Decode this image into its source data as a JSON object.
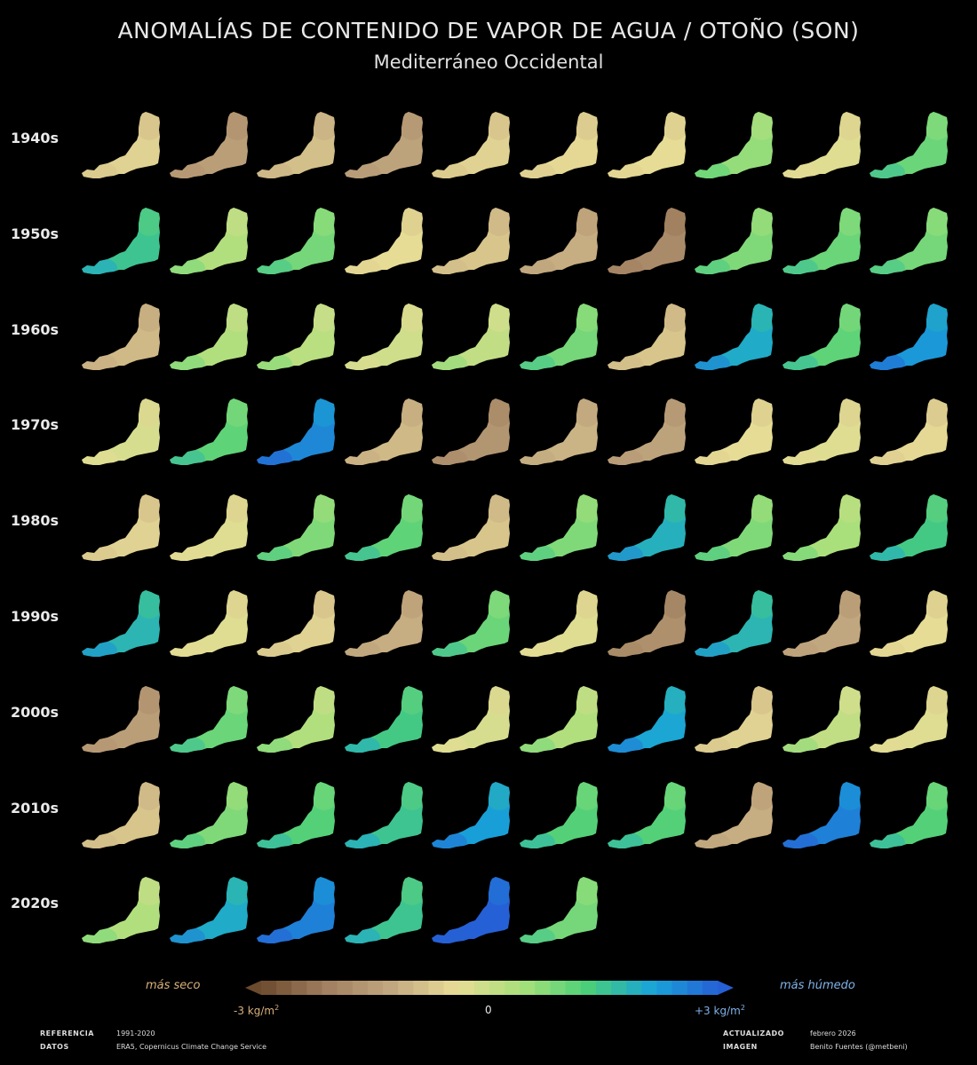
{
  "header": {
    "title": "ANOMALÍAS DE CONTENIDO DE VAPOR DE AGUA / OTOÑO (SON)",
    "subtitle": "Mediterráneo Occidental"
  },
  "chart_data": {
    "type": "heatmap",
    "title": "ANOMALÍAS DE CONTENIDO DE VAPOR DE AGUA / OTOÑO (SON)",
    "subtitle": "Mediterráneo Occidental",
    "row_labels": [
      "1940s",
      "1950s",
      "1960s",
      "1970s",
      "1980s",
      "1990s",
      "2000s",
      "2010s",
      "2020s"
    ],
    "columns_per_row": 10,
    "value_range": [
      -3,
      3
    ],
    "units": "kg/m2",
    "values": [
      [
        -0.6,
        -1.5,
        -0.9,
        -1.4,
        -0.6,
        -0.5,
        -0.4,
        0.6,
        -0.3,
        1.0
      ],
      [
        1.5,
        0.3,
        0.9,
        -0.4,
        -0.8,
        -1.2,
        -1.9,
        0.8,
        1.0,
        0.9
      ],
      [
        -1.0,
        0.3,
        0.2,
        -0.1,
        0.1,
        0.9,
        -0.8,
        2.0,
        1.1,
        2.3
      ],
      [
        -0.2,
        1.1,
        2.5,
        -1.0,
        -1.7,
        -1.1,
        -1.4,
        -0.4,
        -0.3,
        -0.5
      ],
      [
        -0.6,
        -0.3,
        0.8,
        1.1,
        -0.8,
        0.8,
        1.9,
        0.8,
        0.4,
        1.4
      ],
      [
        1.8,
        -0.3,
        -0.6,
        -1.2,
        1.0,
        -0.3,
        -1.8,
        1.8,
        -1.3,
        -0.4
      ],
      [
        -1.5,
        1.0,
        0.3,
        1.4,
        -0.2,
        0.3,
        2.1,
        -0.6,
        0.1,
        -0.3
      ],
      [
        -0.8,
        0.8,
        1.2,
        1.5,
        2.2,
        1.2,
        1.2,
        -1.2,
        2.6,
        1.2
      ],
      [
        0.3,
        2.0,
        2.6,
        1.5,
        3.0,
        0.9
      ]
    ],
    "colormap": [
      "#6b4a2e",
      "#a08060",
      "#c2a880",
      "#e8dc96",
      "#a8e07a",
      "#4bcf78",
      "#18a4d8",
      "#2660d6"
    ],
    "colorbar": {
      "left_label": "más seco",
      "right_label": "más húmedo",
      "min_label": "-3 kg/m",
      "zero_label": "0",
      "max_label": "+3 kg/m",
      "unit_superscript": "2"
    }
  },
  "footer": {
    "ref_key": "REFERENCIA",
    "ref_val": "1991-2020",
    "data_key": "DATOS",
    "data_val": "ERA5, Copernicus Climate Change Service",
    "upd_key": "ACTUALIZADO",
    "upd_val": "febrero 2026",
    "img_key": "IMAGEN",
    "img_val": "Benito Fuentes (@metbeni)"
  },
  "colors": {
    "dry_label": "#d8b07a",
    "wet_label": "#7fb2e8",
    "background": "#000000"
  }
}
